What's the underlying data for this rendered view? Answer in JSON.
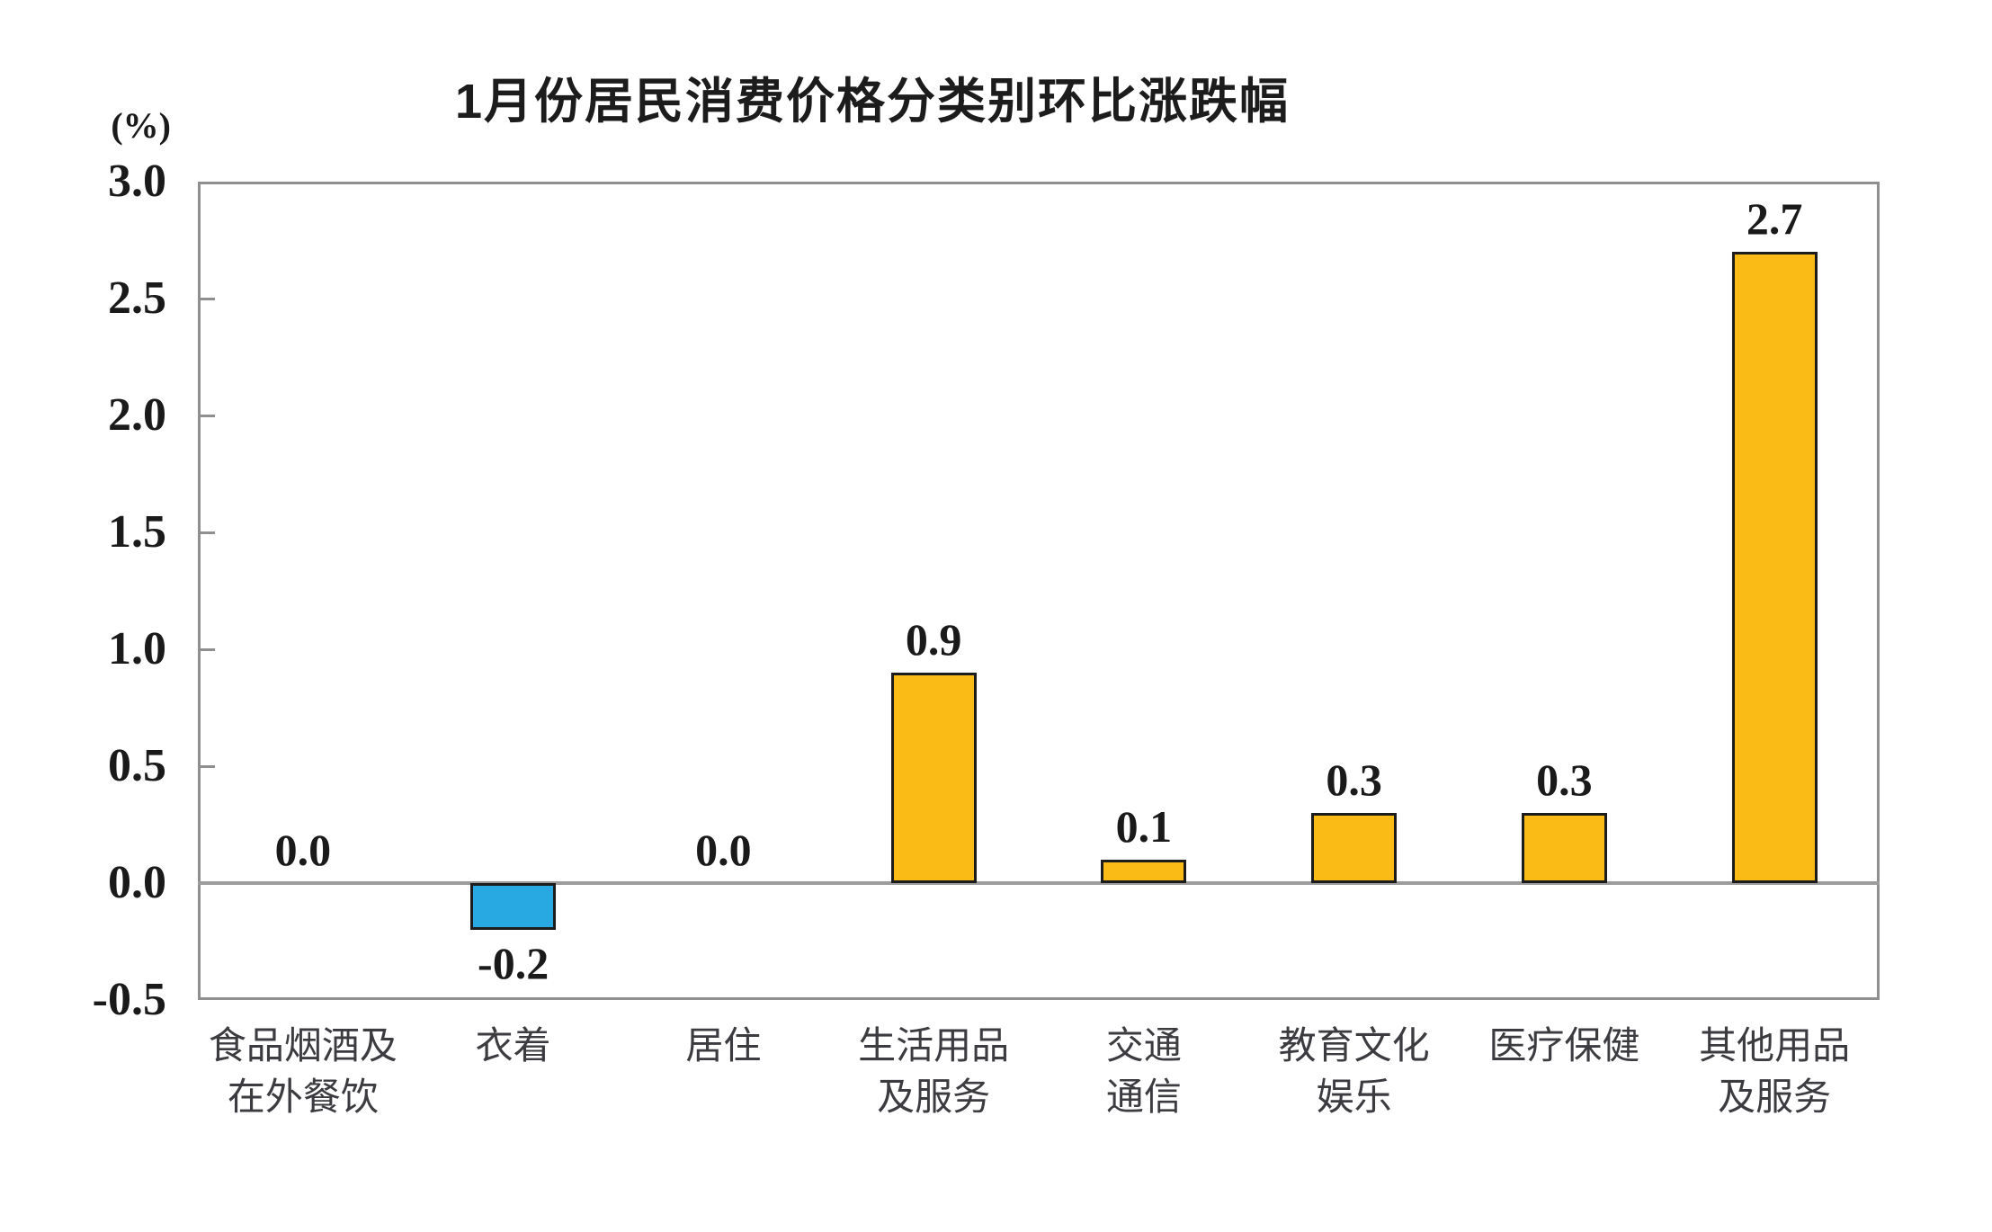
{
  "chart_data": {
    "type": "bar",
    "title": "1月份居民消费价格分类别环比涨跌幅",
    "unit_label": "(%)",
    "categories": [
      "食品烟酒及\n在外餐饮",
      "衣着",
      "居住",
      "生活用品\n及服务",
      "交通\n通信",
      "教育文化\n娱乐",
      "医疗保健",
      "其他用品\n及服务"
    ],
    "values": [
      0.0,
      -0.2,
      0.0,
      0.9,
      0.1,
      0.3,
      0.3,
      2.7
    ],
    "value_labels": [
      "0.0",
      "-0.2",
      "0.0",
      "0.9",
      "0.1",
      "0.3",
      "0.3",
      "2.7"
    ],
    "ylim": [
      -0.5,
      3.0
    ],
    "ytick_labels": [
      "3.0",
      "2.5",
      "2.0",
      "1.5",
      "1.0",
      "0.5",
      "0.0",
      "-0.5"
    ],
    "ytick_values": [
      3.0,
      2.5,
      2.0,
      1.5,
      1.0,
      0.5,
      0.0,
      -0.5
    ],
    "grid": false,
    "legend": "none",
    "colors": {
      "positive_bar": "#fbbb17",
      "negative_bar": "#29a9e1",
      "bar_border": "#1c1c1c",
      "axis": "#8f8f8f",
      "zero_line": "#9c9c9c",
      "text": "#1a1a1a"
    }
  }
}
